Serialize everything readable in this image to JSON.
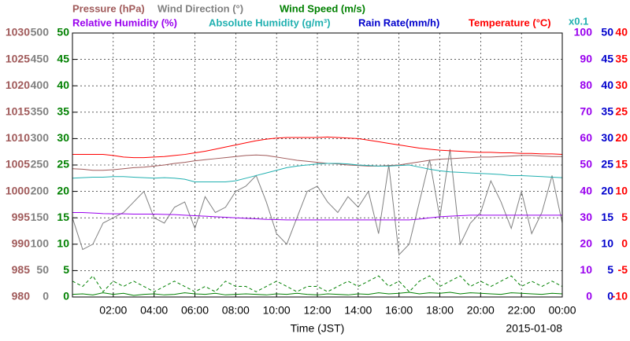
{
  "chart_data": {
    "type": "line",
    "x": [
      0,
      0.5,
      1,
      1.5,
      2,
      2.5,
      3,
      3.5,
      4,
      4.5,
      5,
      5.5,
      6,
      6.5,
      7,
      7.5,
      8,
      8.5,
      9,
      9.5,
      10,
      10.5,
      11,
      11.5,
      12,
      12.5,
      13,
      13.5,
      14,
      14.5,
      15,
      15.5,
      16,
      16.5,
      17,
      17.5,
      18,
      18.5,
      19,
      19.5,
      20,
      20.5,
      21,
      21.5,
      22,
      22.5,
      23,
      23.5,
      24
    ],
    "xlim": [
      0,
      24
    ],
    "xticks": [
      {
        "value": 2,
        "label": "02:00"
      },
      {
        "value": 4,
        "label": "04:00"
      },
      {
        "value": 6,
        "label": "06:00"
      },
      {
        "value": 8,
        "label": "08:00"
      },
      {
        "value": 10,
        "label": "10:00"
      },
      {
        "value": 12,
        "label": "12:00"
      },
      {
        "value": 14,
        "label": "14:00"
      },
      {
        "value": 16,
        "label": "16:00"
      },
      {
        "value": 18,
        "label": "18:00"
      },
      {
        "value": 20,
        "label": "20:00"
      },
      {
        "value": 22,
        "label": "22:00"
      },
      {
        "value": 24,
        "label": "00:00"
      }
    ],
    "x_label": "Time (JST)",
    "date": "2015-01-08",
    "annotation": "x0.1",
    "grid": true,
    "axes": [
      {
        "side": "left",
        "color": "#a05a5a",
        "lim": [
          980,
          1030
        ],
        "ticks": [
          980,
          985,
          990,
          995,
          1000,
          1005,
          1010,
          1015,
          1020,
          1025,
          1030
        ]
      },
      {
        "side": "left",
        "color": "#808080",
        "lim": [
          0,
          500
        ],
        "ticks": [
          0,
          50,
          100,
          150,
          200,
          250,
          300,
          350,
          400,
          450,
          500
        ]
      },
      {
        "side": "left",
        "color": "#008000",
        "lim": [
          0,
          50
        ],
        "ticks": [
          0,
          5,
          10,
          15,
          20,
          25,
          30,
          35,
          40,
          45,
          50
        ]
      },
      {
        "side": "right",
        "color": "#9900ee",
        "lim": [
          0,
          100
        ],
        "ticks": [
          0,
          10,
          20,
          30,
          40,
          50,
          60,
          70,
          80,
          90,
          100
        ]
      },
      {
        "side": "right",
        "color": "#0000cc",
        "lim": [
          0,
          50
        ],
        "ticks": [
          0,
          5,
          10,
          15,
          20,
          25,
          30,
          35,
          40,
          45,
          50
        ]
      },
      {
        "side": "right",
        "color": "#ff0000",
        "lim": [
          -10,
          40
        ],
        "ticks": [
          -10,
          -5,
          0,
          5,
          10,
          15,
          20,
          25,
          30,
          35,
          40
        ]
      }
    ],
    "series": [
      {
        "name": "Pressure (hPa)",
        "color": "#a05a5a",
        "axis": 0,
        "values": [
          1004.3,
          1004.2,
          1004.0,
          1004.0,
          1004.1,
          1004.3,
          1004.5,
          1004.6,
          1004.8,
          1005.0,
          1005.3,
          1005.5,
          1005.8,
          1006.0,
          1006.2,
          1006.4,
          1006.6,
          1006.8,
          1006.9,
          1006.8,
          1006.5,
          1006.2,
          1005.9,
          1005.7,
          1005.5,
          1005.3,
          1005.2,
          1005.0,
          1004.9,
          1004.8,
          1004.8,
          1004.9,
          1005.0,
          1005.3,
          1005.6,
          1005.9,
          1006.1,
          1006.2,
          1006.3,
          1006.4,
          1006.5,
          1006.5,
          1006.6,
          1006.7,
          1006.8,
          1006.8,
          1006.7,
          1006.6,
          1006.6
        ]
      },
      {
        "name": "Wind Direction (°)",
        "color": "#808080",
        "axis": 1,
        "values": [
          150,
          90,
          100,
          140,
          150,
          160,
          180,
          200,
          150,
          140,
          170,
          180,
          130,
          190,
          160,
          170,
          200,
          210,
          230,
          180,
          120,
          100,
          150,
          200,
          210,
          180,
          160,
          190,
          170,
          200,
          120,
          250,
          80,
          100,
          180,
          260,
          150,
          280,
          100,
          140,
          160,
          220,
          180,
          130,
          200,
          120,
          160,
          230,
          140
        ]
      },
      {
        "name": "Wind Speed (m/s)",
        "color": "#008000",
        "axis": 2,
        "values": [
          0.5,
          0.6,
          0.4,
          0.8,
          0.5,
          0.7,
          0.3,
          0.5,
          0.6,
          0.4,
          0.5,
          0.8,
          0.6,
          0.5,
          0.7,
          0.4,
          0.5,
          0.6,
          0.5,
          0.4,
          0.6,
          0.5,
          0.7,
          0.5,
          0.4,
          0.6,
          0.5,
          0.4,
          0.6,
          0.5,
          0.8,
          0.6,
          0.7,
          0.9,
          0.6,
          0.8,
          0.7,
          0.9,
          0.6,
          0.8,
          0.7,
          0.6,
          0.5,
          0.8,
          0.7,
          0.6,
          0.5,
          0.7,
          0.6
        ]
      },
      {
        "color": "#008000",
        "axis": 2,
        "dashed": true,
        "values": [
          3,
          2,
          4,
          1,
          3,
          2,
          3,
          2,
          1,
          2,
          3,
          2,
          1,
          2,
          1,
          3,
          2,
          2,
          1,
          2,
          3,
          2,
          1,
          2,
          2,
          1,
          2,
          3,
          2,
          3,
          4,
          2,
          3,
          1,
          3,
          4,
          2,
          3,
          4,
          2,
          3,
          2,
          3,
          4,
          2,
          3,
          2,
          3,
          2
        ]
      },
      {
        "name": "Relative Humidity (%)",
        "color": "#9900ee",
        "axis": 3,
        "values": [
          32.0,
          32.0,
          31.8,
          31.6,
          31.5,
          31.5,
          31.4,
          31.4,
          31.4,
          31.3,
          31.2,
          31.0,
          30.8,
          30.6,
          30.4,
          30.2,
          30.0,
          29.8,
          29.6,
          29.4,
          29.3,
          29.2,
          29.2,
          29.2,
          29.2,
          29.2,
          29.2,
          29.2,
          29.2,
          29.2,
          29.2,
          29.2,
          29.2,
          29.2,
          29.5,
          30.0,
          30.4,
          30.6,
          30.8,
          31.0,
          31.0,
          31.0,
          31.0,
          31.0,
          31.0,
          31.0,
          31.0,
          31.0,
          31.0
        ]
      },
      {
        "name": "Absolute Humidity (g/m³)",
        "color": "#20b0b0",
        "axis": 4,
        "values": [
          22.5,
          22.6,
          22.7,
          22.7,
          22.8,
          22.8,
          22.7,
          22.6,
          22.5,
          22.6,
          22.5,
          22.3,
          21.8,
          21.8,
          21.8,
          21.8,
          22.0,
          22.5,
          23.0,
          23.5,
          24.0,
          24.5,
          24.8,
          25.0,
          25.2,
          25.3,
          25.3,
          25.2,
          25.0,
          24.9,
          24.8,
          24.8,
          24.9,
          25.0,
          24.6,
          24.2,
          23.9,
          23.7,
          23.6,
          23.5,
          23.4,
          23.3,
          23.2,
          23.0,
          23.0,
          22.9,
          22.8,
          22.7,
          22.6
        ]
      },
      {
        "name": "Rain Rate(mm/h)",
        "color": "#0000cc",
        "axis": 4,
        "values": [
          0,
          0,
          0,
          0,
          0,
          0,
          0,
          0,
          0,
          0,
          0,
          0,
          0,
          0,
          0,
          0,
          0,
          0,
          0,
          0,
          0,
          0,
          0,
          0,
          0,
          0,
          0,
          0,
          0,
          0,
          0,
          0,
          0,
          0,
          0,
          0,
          0,
          0,
          0,
          0,
          0,
          0,
          0,
          0,
          0,
          0,
          0,
          0,
          0
        ]
      },
      {
        "name": "Temperature (°C)",
        "color": "#ff0000",
        "axis": 5,
        "values": [
          17.0,
          17.0,
          17.0,
          17.0,
          16.8,
          16.5,
          16.4,
          16.4,
          16.5,
          16.6,
          16.8,
          17.0,
          17.3,
          17.6,
          18.0,
          18.4,
          18.8,
          19.2,
          19.6,
          19.9,
          20.1,
          20.2,
          20.2,
          20.2,
          20.2,
          20.3,
          20.2,
          20.1,
          20.0,
          19.7,
          19.4,
          19.1,
          18.8,
          18.5,
          18.2,
          18.0,
          17.8,
          17.7,
          17.6,
          17.5,
          17.4,
          17.4,
          17.3,
          17.3,
          17.2,
          17.2,
          17.1,
          17.1,
          17.0
        ]
      }
    ]
  }
}
